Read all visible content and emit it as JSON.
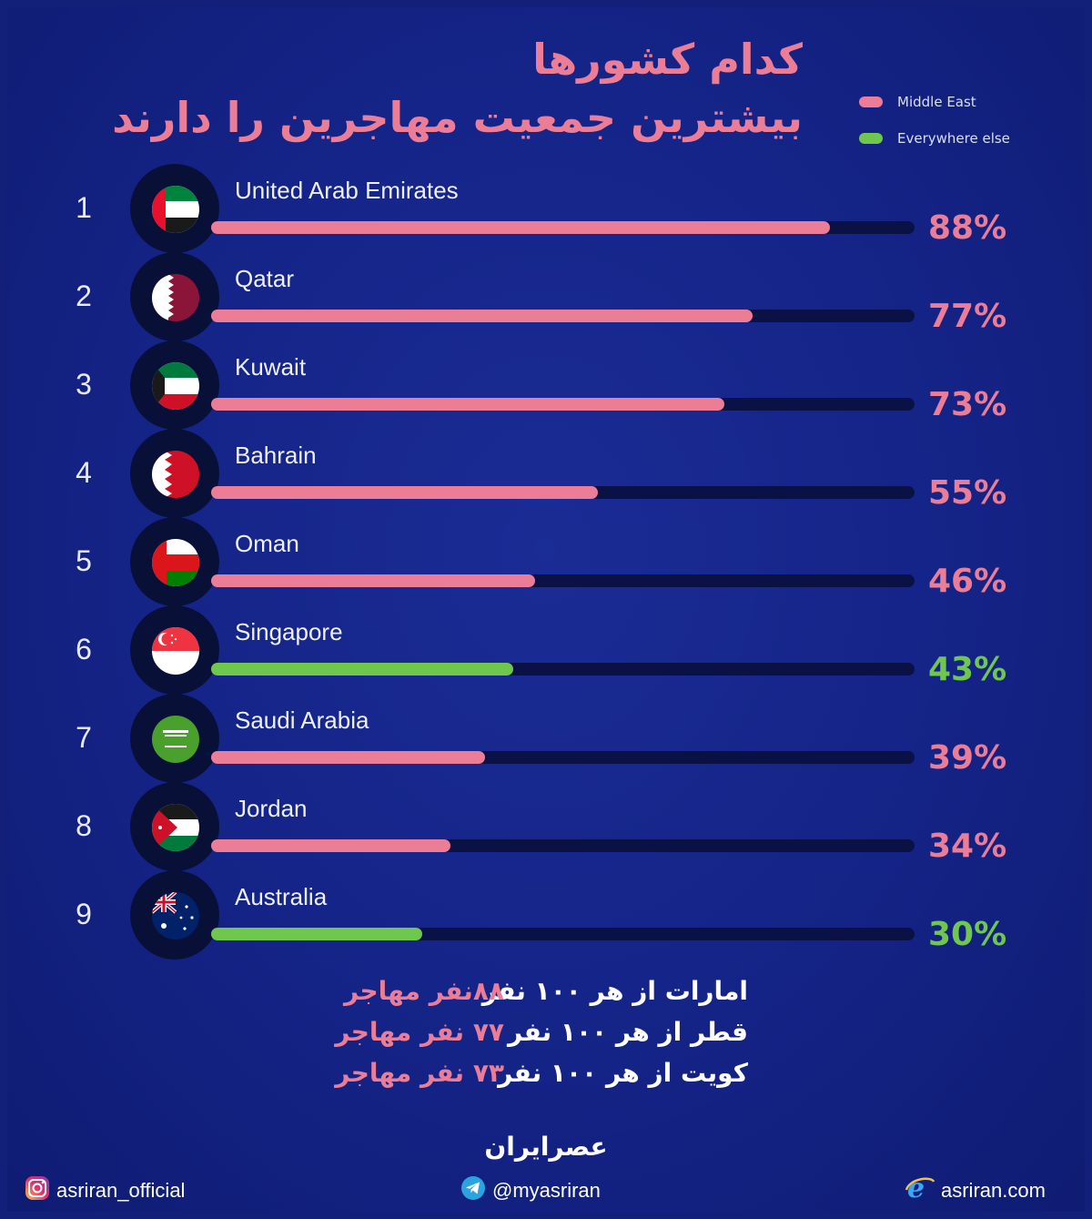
{
  "title": {
    "line1": "کدام کشورها",
    "line2": "بیشترین جمعیت مهاجرین را دارند"
  },
  "legend": [
    {
      "label": "Middle East",
      "color": "#ec7d96"
    },
    {
      "label": "Everywhere else",
      "color": "#6fc74e"
    }
  ],
  "chart_data": {
    "type": "bar",
    "orientation": "horizontal",
    "title": "کدام کشورها بیشترین جمعیت مهاجرین را دارند",
    "legend_placement": "top-right",
    "xlim": [
      0,
      100
    ],
    "series": [
      {
        "name": "Middle East",
        "color": "#ec7d96"
      },
      {
        "name": "Everywhere else",
        "color": "#6fc74e"
      }
    ],
    "bars": [
      {
        "rank": "1",
        "country": "United Arab Emirates",
        "value": 88,
        "label": "88%",
        "group": "Middle East",
        "flag": "uae-flag-icon"
      },
      {
        "rank": "2",
        "country": "Qatar",
        "value": 77,
        "label": "77%",
        "group": "Middle East",
        "flag": "qatar-flag-icon"
      },
      {
        "rank": "3",
        "country": "Kuwait",
        "value": 73,
        "label": "73%",
        "group": "Middle East",
        "flag": "kuwait-flag-icon"
      },
      {
        "rank": "4",
        "country": "Bahrain",
        "value": 55,
        "label": "55%",
        "group": "Middle East",
        "flag": "bahrain-flag-icon"
      },
      {
        "rank": "5",
        "country": "Oman",
        "value": 46,
        "label": "46%",
        "group": "Middle East",
        "flag": "oman-flag-icon"
      },
      {
        "rank": "6",
        "country": "Singapore",
        "value": 43,
        "label": "43%",
        "group": "Everywhere else",
        "flag": "singapore-flag-icon"
      },
      {
        "rank": "7",
        "country": "Saudi Arabia",
        "value": 39,
        "label": "39%",
        "group": "Middle East",
        "flag": "saudi-arabia-flag-icon"
      },
      {
        "rank": "8",
        "country": "Jordan",
        "value": 34,
        "label": "34%",
        "group": "Middle East",
        "flag": "jordan-flag-icon"
      },
      {
        "rank": "9",
        "country": "Australia",
        "value": 30,
        "label": "30%",
        "group": "Everywhere else",
        "flag": "australia-flag-icon"
      }
    ]
  },
  "facts": [
    {
      "a": "امارات از هر ۱۰۰ نفر",
      "b": "۸۸نفر مهاجر"
    },
    {
      "a": "قطر از هر ۱۰۰ نفر",
      "b": "۷۷ نفر مهاجر"
    },
    {
      "a": "کویت از هر ۱۰۰ نفر",
      "b": "۷۳ نفر مهاجر"
    }
  ],
  "footer": {
    "brand": "عصرایران",
    "instagram": "asriran_official",
    "telegram": "@myasriran",
    "website": "asriran.com",
    "icons": [
      "instagram-icon",
      "telegram-icon",
      "browser-icon"
    ]
  }
}
